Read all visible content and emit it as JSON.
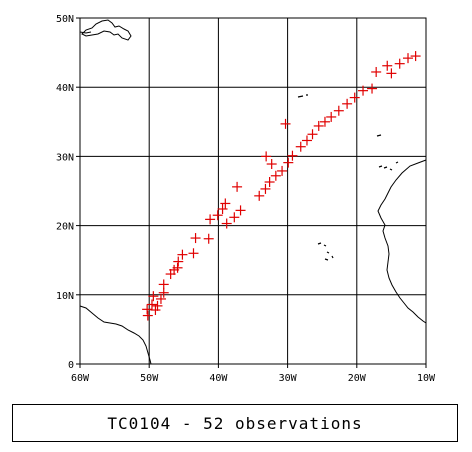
{
  "map": {
    "lon_range": [
      -60,
      -10
    ],
    "lat_range": [
      0,
      50
    ],
    "x_ticks": [
      {
        "value": -60,
        "label": "60W"
      },
      {
        "value": -50,
        "label": "50W"
      },
      {
        "value": -40,
        "label": "40W"
      },
      {
        "value": -30,
        "label": "30W"
      },
      {
        "value": -20,
        "label": "20W"
      },
      {
        "value": -10,
        "label": "10W"
      }
    ],
    "y_ticks": [
      {
        "value": 0,
        "label": "0"
      },
      {
        "value": 10,
        "label": "10N"
      },
      {
        "value": 20,
        "label": "20N"
      },
      {
        "value": 30,
        "label": "30N"
      },
      {
        "value": 40,
        "label": "40N"
      },
      {
        "value": 50,
        "label": "50N"
      }
    ],
    "grid": true,
    "marker": "plus",
    "marker_color": "#e00000",
    "observations": [
      [
        -50.2,
        7.0
      ],
      [
        -50.3,
        7.9
      ],
      [
        -49.6,
        8.6
      ],
      [
        -49.1,
        7.8
      ],
      [
        -49.4,
        9.8
      ],
      [
        -48.8,
        8.4
      ],
      [
        -48.3,
        9.4
      ],
      [
        -47.9,
        10.3
      ],
      [
        -47.9,
        11.5
      ],
      [
        -46.9,
        13.0
      ],
      [
        -46.4,
        13.6
      ],
      [
        -45.9,
        13.9
      ],
      [
        -45.8,
        14.8
      ],
      [
        -45.2,
        15.8
      ],
      [
        -43.6,
        16.0
      ],
      [
        -43.3,
        18.2
      ],
      [
        -41.4,
        18.1
      ],
      [
        -41.2,
        20.9
      ],
      [
        -40.1,
        21.5
      ],
      [
        -39.4,
        22.4
      ],
      [
        -39.0,
        23.2
      ],
      [
        -38.8,
        20.3
      ],
      [
        -37.7,
        21.2
      ],
      [
        -36.8,
        22.2
      ],
      [
        -37.3,
        25.6
      ],
      [
        -34.1,
        24.3
      ],
      [
        -33.2,
        25.3
      ],
      [
        -32.6,
        26.3
      ],
      [
        -32.3,
        28.9
      ],
      [
        -31.7,
        27.2
      ],
      [
        -30.8,
        27.9
      ],
      [
        -29.9,
        29.1
      ],
      [
        -30.3,
        34.7
      ],
      [
        -29.3,
        30.1
      ],
      [
        -28.1,
        31.4
      ],
      [
        -27.2,
        32.3
      ],
      [
        -26.4,
        33.2
      ],
      [
        -25.5,
        34.4
      ],
      [
        -24.6,
        35.0
      ],
      [
        -23.7,
        35.7
      ],
      [
        -22.6,
        36.6
      ],
      [
        -21.4,
        37.6
      ],
      [
        -20.3,
        38.5
      ],
      [
        -19.1,
        39.5
      ],
      [
        -17.8,
        39.8
      ],
      [
        -17.2,
        42.2
      ],
      [
        -15.6,
        43.1
      ],
      [
        -15.0,
        42.0
      ],
      [
        -13.8,
        43.4
      ],
      [
        -12.6,
        44.2
      ],
      [
        -11.5,
        44.5
      ],
      [
        -33.1,
        30.0
      ]
    ]
  },
  "caption": "TC0104 - 52 observations",
  "colors": {
    "grid": "#000000",
    "coast": "#000000",
    "marker": "#e00000"
  }
}
